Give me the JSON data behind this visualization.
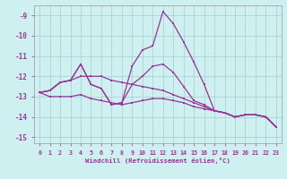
{
  "x": [
    0,
    1,
    2,
    3,
    4,
    5,
    6,
    7,
    8,
    9,
    10,
    11,
    12,
    13,
    14,
    15,
    16,
    17,
    18,
    19,
    20,
    21,
    22,
    23
  ],
  "line_big_peak": [
    -12.8,
    -12.7,
    -12.3,
    -12.2,
    -11.4,
    -12.4,
    -12.6,
    -13.4,
    -13.3,
    -11.5,
    -10.7,
    -10.5,
    -8.8,
    -9.4,
    -10.3,
    -11.3,
    -12.4,
    -13.7,
    -13.8,
    -14.0,
    -13.9,
    -13.9,
    -14.0,
    -14.5
  ],
  "line_med_peak": [
    -12.8,
    -12.7,
    -12.3,
    -12.2,
    -11.4,
    -12.4,
    -12.6,
    -13.4,
    -13.3,
    -12.4,
    -12.0,
    -11.5,
    -11.4,
    -11.8,
    -12.5,
    -13.2,
    -13.4,
    -13.7,
    -13.8,
    -14.0,
    -13.9,
    -13.9,
    -14.0,
    -14.5
  ],
  "line_gradual": [
    -12.8,
    -12.7,
    -12.3,
    -12.2,
    -12.0,
    -12.0,
    -12.0,
    -12.2,
    -12.3,
    -12.4,
    -12.5,
    -12.6,
    -12.7,
    -12.9,
    -13.1,
    -13.3,
    -13.5,
    -13.7,
    -13.8,
    -14.0,
    -13.9,
    -13.9,
    -14.0,
    -14.5
  ],
  "line_flat": [
    -12.8,
    -13.0,
    -13.0,
    -13.0,
    -12.9,
    -13.1,
    -13.2,
    -13.3,
    -13.4,
    -13.3,
    -13.2,
    -13.1,
    -13.1,
    -13.2,
    -13.3,
    -13.5,
    -13.6,
    -13.7,
    -13.8,
    -14.0,
    -13.9,
    -13.9,
    -14.0,
    -14.5
  ],
  "color": "#993399",
  "bg_color": "#cff0f0",
  "grid_color": "#aad4d4",
  "xlabel": "Windchill (Refroidissement éolien,°C)",
  "ylim": [
    -15.3,
    -8.5
  ],
  "xlim": [
    -0.5,
    23.5
  ],
  "yticks": [
    -15,
    -14,
    -13,
    -12,
    -11,
    -10,
    -9
  ],
  "xticks": [
    0,
    1,
    2,
    3,
    4,
    5,
    6,
    7,
    8,
    9,
    10,
    11,
    12,
    13,
    14,
    15,
    16,
    17,
    18,
    19,
    20,
    21,
    22,
    23
  ]
}
